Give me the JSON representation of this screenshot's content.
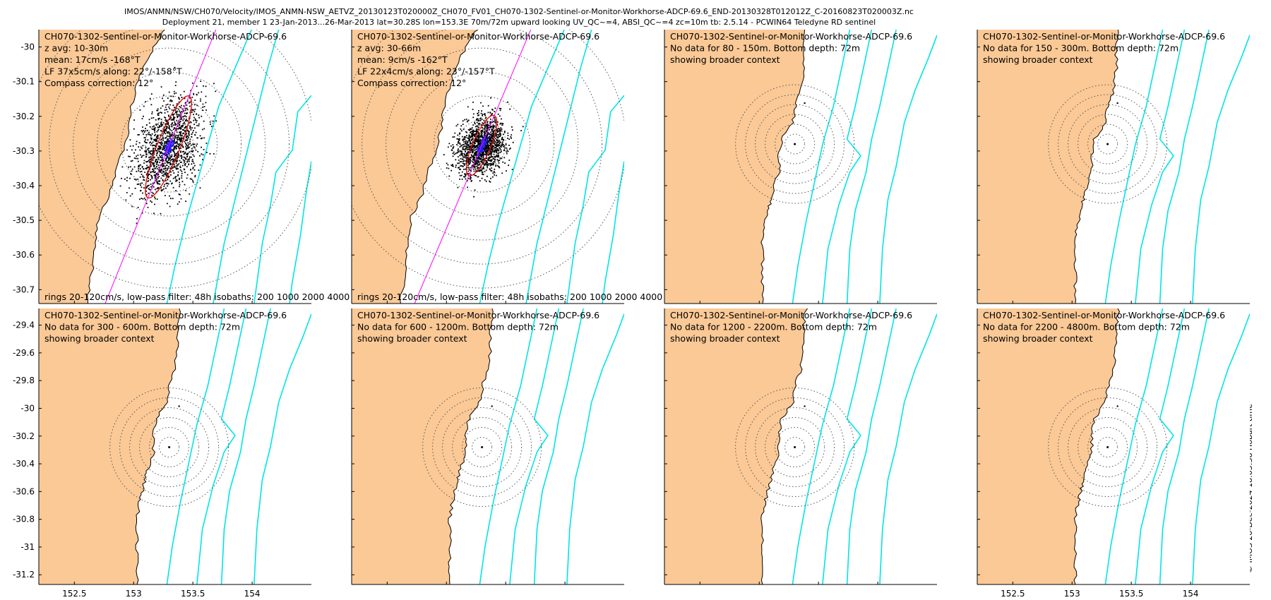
{
  "header": {
    "line1": "IMOS/ANMN/NSW/CH070/Velocity/IMOS_ANMN-NSW_AETVZ_20130123T020000Z_CH070_FV01_CH070-1302-Sentinel-or-Monitor-Workhorse-ADCP-69.6_END-20130328T012012Z_C-20160823T020003Z.nc",
    "line2": "Deployment 21, member 1 23-Jan-2013...26-Mar-2013 lat=30.28S lon=153.3E 70m/72m upward looking UV_QC~=4, ABSI_QC~=4 zc=10m tb: 2.5.14 - PCWIN64 Teledyne RD sentinel"
  },
  "stamp": "© IMOS 20-Dec-2024 18:05:38 Hobart time",
  "colors": {
    "land": "#FAC996",
    "isobath": "#00E5E5",
    "scatter": "#000000",
    "mean": "#2020FF",
    "ellipse": "#E01010",
    "axis": "#FF00FF",
    "rings": "#555555"
  },
  "chart_data": {
    "type": "scatter",
    "xlim_top": [
      152.2,
      154.5
    ],
    "ylim_top": [
      -30.74,
      -29.95
    ],
    "xlim_bottom": [
      152.2,
      154.5
    ],
    "ylim_bottom": [
      -31.27,
      -29.28
    ],
    "x_ticks": [
      "152.5",
      "153",
      "153.5",
      "154"
    ],
    "x_tick_values": [
      152.5,
      153,
      153.5,
      154
    ],
    "y_ticks_top": [
      "-30",
      "-30.1",
      "-30.2",
      "-30.3",
      "-30.4",
      "-30.5",
      "-30.6",
      "-30.7"
    ],
    "y_tick_values_top": [
      -30,
      -30.1,
      -30.2,
      -30.3,
      -30.4,
      -30.5,
      -30.6,
      -30.7
    ],
    "y_ticks_bottom": [
      "-29.4",
      "-29.6",
      "-29.8",
      "-30",
      "-30.2",
      "-30.4",
      "-30.6",
      "-30.8",
      "-31",
      "-31.2"
    ],
    "y_tick_values_bottom": [
      -29.4,
      -29.6,
      -29.8,
      -30,
      -30.2,
      -30.4,
      -30.6,
      -30.8,
      -31,
      -31.2
    ],
    "mooring": {
      "lon": 153.3,
      "lat": -30.28
    },
    "panels": [
      {
        "lines": [
          "CH070-1302-Sentinel-or-Monitor-Workhorse-ADCP-69.6",
          "z avg: 10-30m",
          "mean: 17cm/s -168°T",
          "LF 37x5cm/s along: 22°/-158°T",
          "Compass correction: 12°"
        ],
        "footer": "rings 20-120cm/s, low-pass filter: 48h isobaths: 200 1000 2000 4000",
        "has_data": true,
        "mean_speed": 17,
        "major": 37,
        "minor": 5,
        "along_deg": 22
      },
      {
        "lines": [
          "CH070-1302-Sentinel-or-Monitor-Workhorse-ADCP-69.6",
          "z avg: 30-66m",
          "mean: 9cm/s -162°T",
          "LF 22x4cm/s along: 23°/-157°T",
          "Compass correction: 12°"
        ],
        "footer": "rings 20-120cm/s, low-pass filter: 48h isobaths: 200 1000 2000 4000",
        "has_data": true,
        "mean_speed": 9,
        "major": 22,
        "minor": 4,
        "along_deg": 23
      },
      {
        "lines": [
          "CH070-1302-Sentinel-or-Monitor-Workhorse-ADCP-69.6",
          "No data for 80 - 150m. Bottom depth: 72m",
          "showing broader context"
        ],
        "footer": "",
        "has_data": false
      },
      {
        "lines": [
          "CH070-1302-Sentinel-or-Monitor-Workhorse-ADCP-69.6",
          "No data for 150 - 300m. Bottom depth: 72m",
          "showing broader context"
        ],
        "footer": "",
        "has_data": false
      },
      {
        "lines": [
          "CH070-1302-Sentinel-or-Monitor-Workhorse-ADCP-69.6",
          "No data for 300 - 600m. Bottom depth: 72m",
          "showing broader context"
        ],
        "footer": "",
        "has_data": false
      },
      {
        "lines": [
          "CH070-1302-Sentinel-or-Monitor-Workhorse-ADCP-69.6",
          "No data for 600 - 1200m. Bottom depth: 72m",
          "showing broader context"
        ],
        "footer": "",
        "has_data": false
      },
      {
        "lines": [
          "CH070-1302-Sentinel-or-Monitor-Workhorse-ADCP-69.6",
          "No data for 1200 - 2200m. Bottom depth: 72m",
          "showing broader context"
        ],
        "footer": "",
        "has_data": false
      },
      {
        "lines": [
          "CH070-1302-Sentinel-or-Monitor-Workhorse-ADCP-69.6",
          "No data for 2200 - 4800m. Bottom depth: 72m",
          "showing broader context"
        ],
        "footer": "",
        "has_data": false
      }
    ]
  }
}
